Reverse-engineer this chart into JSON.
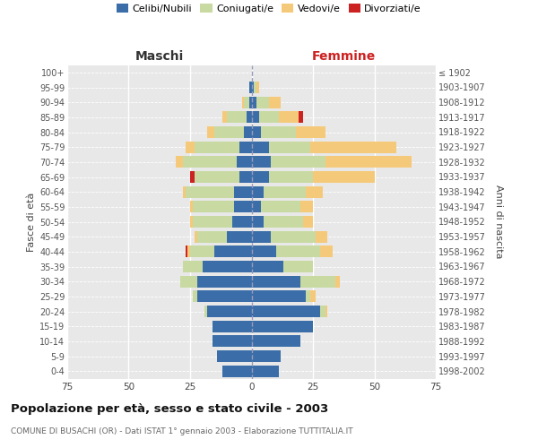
{
  "age_groups": [
    "0-4",
    "5-9",
    "10-14",
    "15-19",
    "20-24",
    "25-29",
    "30-34",
    "35-39",
    "40-44",
    "45-49",
    "50-54",
    "55-59",
    "60-64",
    "65-69",
    "70-74",
    "75-79",
    "80-84",
    "85-89",
    "90-94",
    "95-99",
    "100+"
  ],
  "birth_years": [
    "1998-2002",
    "1993-1997",
    "1988-1992",
    "1983-1987",
    "1978-1982",
    "1973-1977",
    "1968-1972",
    "1963-1967",
    "1958-1962",
    "1953-1957",
    "1948-1952",
    "1943-1947",
    "1938-1942",
    "1933-1937",
    "1928-1932",
    "1923-1927",
    "1918-1922",
    "1913-1917",
    "1908-1912",
    "1903-1907",
    "≤ 1902"
  ],
  "maschi": {
    "celibe": [
      12,
      14,
      16,
      16,
      18,
      22,
      22,
      20,
      15,
      10,
      8,
      7,
      7,
      5,
      6,
      5,
      3,
      2,
      1,
      1,
      0
    ],
    "coniugato": [
      0,
      0,
      0,
      0,
      1,
      2,
      7,
      8,
      10,
      12,
      16,
      17,
      20,
      18,
      22,
      18,
      12,
      8,
      2,
      0,
      0
    ],
    "vedovo": [
      0,
      0,
      0,
      0,
      0,
      0,
      0,
      0,
      1,
      1,
      1,
      1,
      1,
      0,
      3,
      4,
      3,
      2,
      1,
      0,
      0
    ],
    "divorziato": [
      0,
      0,
      0,
      0,
      0,
      0,
      0,
      0,
      1,
      0,
      0,
      0,
      0,
      2,
      0,
      0,
      0,
      0,
      0,
      0,
      0
    ]
  },
  "femmine": {
    "nubile": [
      11,
      12,
      20,
      25,
      28,
      22,
      20,
      13,
      10,
      8,
      5,
      4,
      5,
      7,
      8,
      7,
      4,
      3,
      2,
      1,
      0
    ],
    "coniugata": [
      0,
      0,
      0,
      0,
      2,
      2,
      14,
      12,
      18,
      18,
      16,
      16,
      17,
      18,
      22,
      17,
      14,
      8,
      5,
      1,
      0
    ],
    "vedova": [
      0,
      0,
      0,
      0,
      1,
      2,
      2,
      0,
      5,
      5,
      4,
      5,
      7,
      25,
      35,
      35,
      12,
      8,
      5,
      1,
      0
    ],
    "divorziata": [
      0,
      0,
      0,
      0,
      0,
      0,
      0,
      0,
      0,
      0,
      0,
      0,
      0,
      0,
      0,
      0,
      0,
      2,
      0,
      0,
      0
    ]
  },
  "colors": {
    "celibe": "#3b6ea8",
    "coniugato": "#c8daa2",
    "vedovo": "#f5c97a",
    "divorziato": "#cc2222"
  },
  "xlim": 75,
  "title": "Popolazione per età, sesso e stato civile - 2003",
  "subtitle": "COMUNE DI BUSACHI (OR) - Dati ISTAT 1° gennaio 2003 - Elaborazione TUTTITALIA.IT",
  "ylabel_left": "Fasce di età",
  "ylabel_right": "Anni di nascita",
  "header_maschi": "Maschi",
  "header_femmine": "Femmine",
  "legend_labels": [
    "Celibi/Nubili",
    "Coniugati/e",
    "Vedovi/e",
    "Divorziati/e"
  ],
  "background_color": "#ffffff",
  "plot_bg": "#e8e8e8"
}
